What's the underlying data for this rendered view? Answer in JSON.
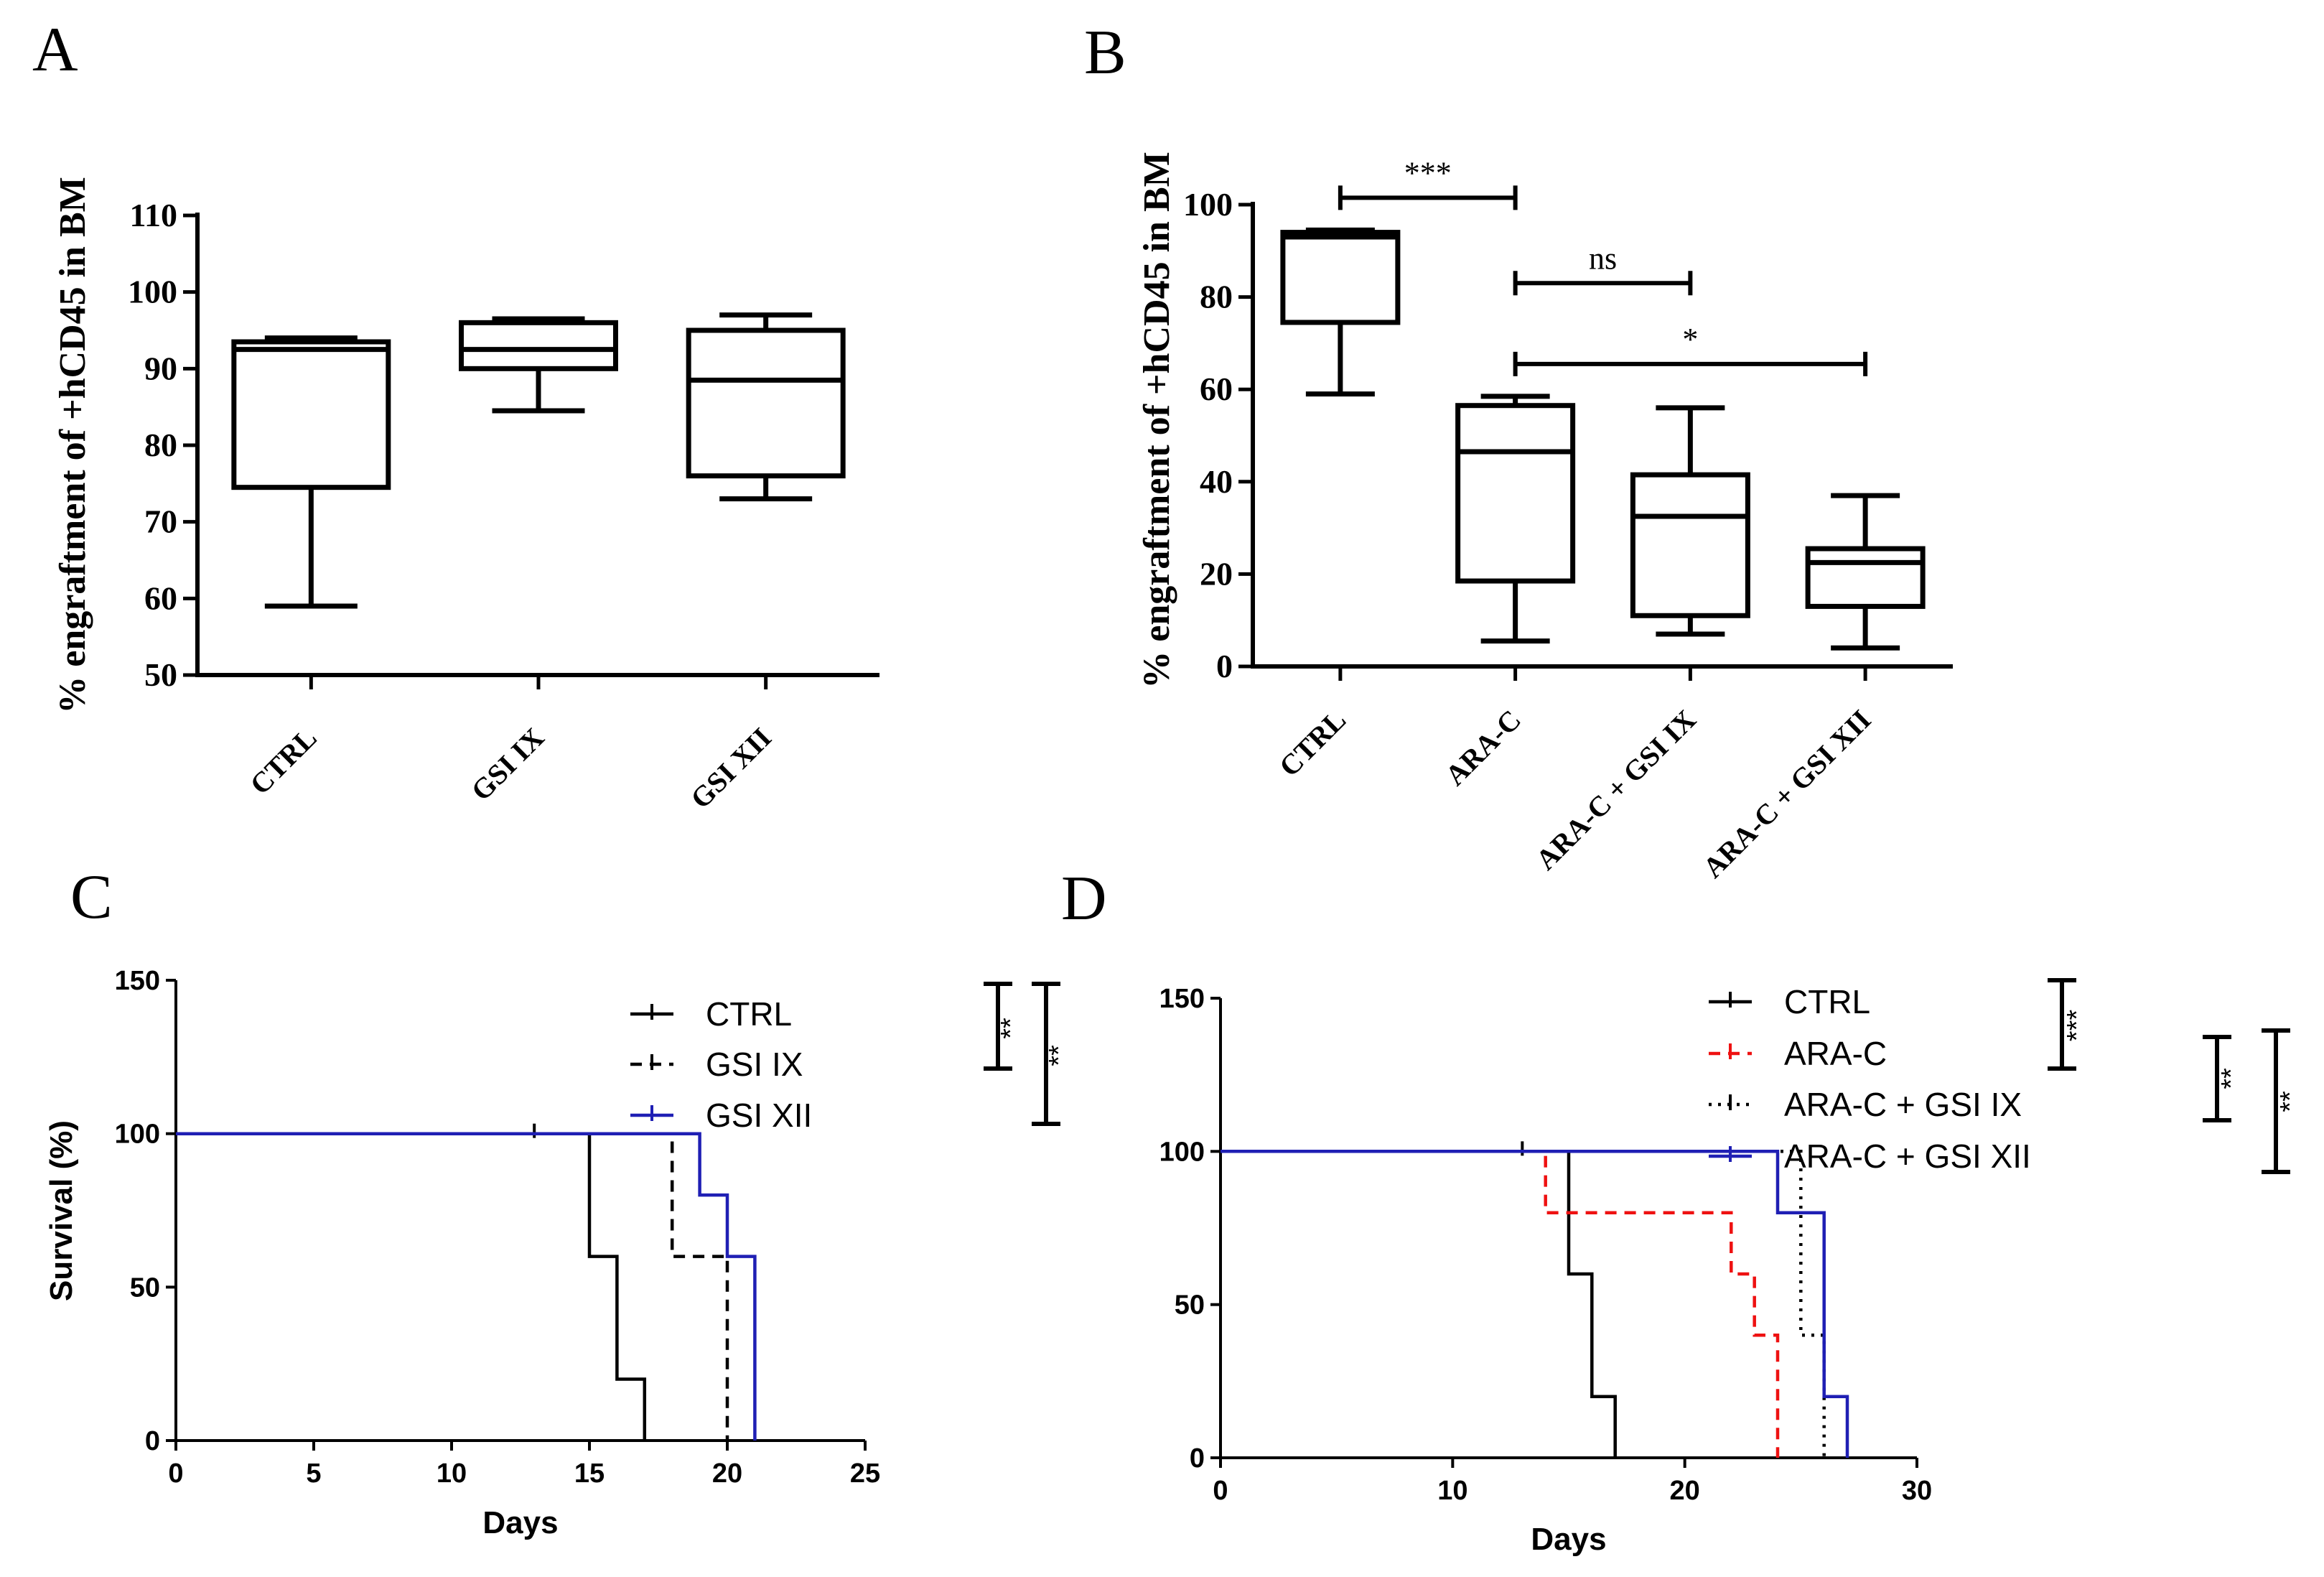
{
  "figure_labels": [
    "A",
    "B",
    "C",
    "D"
  ],
  "chart_data": [
    {
      "panel": "A",
      "type": "box",
      "ylabel": "% engraftment of +hCD45 in BM",
      "ylim": [
        50,
        110
      ],
      "yticks": [
        50,
        60,
        70,
        80,
        90,
        100,
        110
      ],
      "categories": [
        "CTRL",
        "GSI IX",
        "GSI XII"
      ],
      "boxes": [
        {
          "min": 59,
          "q1": 74.5,
          "median": 92.5,
          "q3": 93.5,
          "max": 94
        },
        {
          "min": 84.5,
          "q1": 90,
          "median": 92.5,
          "q3": 96,
          "max": 96.5
        },
        {
          "min": 73,
          "q1": 76,
          "median": 88.5,
          "q3": 95,
          "max": 97
        }
      ],
      "comparisons": []
    },
    {
      "panel": "B",
      "type": "box",
      "ylabel": "% engraftment of +hCD45 in BM",
      "ylim": [
        0,
        100
      ],
      "yticks": [
        0,
        20,
        40,
        60,
        80,
        100
      ],
      "categories": [
        "CTRL",
        "ARA-C",
        "ARA-C + GSI IX",
        "ARA-C + GSI XII"
      ],
      "boxes": [
        {
          "min": 59,
          "q1": 74.5,
          "median": 93,
          "q3": 94,
          "max": 94.5
        },
        {
          "min": 5.5,
          "q1": 18.5,
          "median": 46.5,
          "q3": 56.5,
          "max": 58.5
        },
        {
          "min": 7,
          "q1": 11,
          "median": 32.5,
          "q3": 41.5,
          "max": 56
        },
        {
          "min": 4,
          "q1": 13,
          "median": 22.5,
          "q3": 25.5,
          "max": 37
        }
      ],
      "comparisons": [
        {
          "from": 0,
          "to": 1,
          "label": "***",
          "y": 101.5
        },
        {
          "from": 1,
          "to": 2,
          "label": "ns",
          "y": 83
        },
        {
          "from": 1,
          "to": 3,
          "label": "*",
          "y": 65.5
        }
      ]
    },
    {
      "panel": "C",
      "type": "line",
      "subtype": "kaplan-meier",
      "xlabel": "Days",
      "ylabel": "Survival (%)",
      "xlim": [
        0,
        25
      ],
      "ylim": [
        0,
        150
      ],
      "xticks": [
        0,
        5,
        10,
        15,
        20,
        25
      ],
      "yticks": [
        0,
        50,
        100,
        150
      ],
      "series": [
        {
          "name": "CTRL",
          "color": "#000000",
          "dash": "solid",
          "steps": [
            [
              0,
              100
            ],
            [
              15,
              60
            ],
            [
              16,
              20
            ],
            [
              17,
              0
            ]
          ],
          "censor": [
            [
              13,
              100
            ]
          ]
        },
        {
          "name": "GSI IX",
          "color": "#000000",
          "dash": "dashed",
          "steps": [
            [
              0,
              100
            ],
            [
              18,
              60
            ],
            [
              20,
              0
            ]
          ],
          "censor": []
        },
        {
          "name": "GSI XII",
          "color": "#1f1fb4",
          "dash": "solid",
          "steps": [
            [
              0,
              100
            ],
            [
              19,
              80
            ],
            [
              20,
              60
            ],
            [
              21,
              0
            ]
          ],
          "censor": []
        }
      ],
      "significance": [
        {
          "label": "**",
          "between": [
            "CTRL",
            "GSI IX"
          ]
        },
        {
          "label": "**",
          "between": [
            "CTRL",
            "GSI XII"
          ]
        }
      ]
    },
    {
      "panel": "D",
      "type": "line",
      "subtype": "kaplan-meier",
      "xlabel": "Days",
      "ylabel": "",
      "xlim": [
        0,
        30
      ],
      "ylim": [
        0,
        150
      ],
      "xticks": [
        0,
        10,
        20,
        30
      ],
      "yticks": [
        0,
        50,
        100,
        150
      ],
      "series": [
        {
          "name": "CTRL",
          "color": "#000000",
          "dash": "solid",
          "steps": [
            [
              0,
              100
            ],
            [
              15,
              60
            ],
            [
              16,
              20
            ],
            [
              17,
              0
            ]
          ],
          "censor": [
            [
              13,
              100
            ]
          ]
        },
        {
          "name": "ARA-C",
          "color": "#ee1111",
          "dash": "dashed",
          "steps": [
            [
              0,
              100
            ],
            [
              14,
              80
            ],
            [
              22,
              60
            ],
            [
              23,
              40
            ],
            [
              24,
              0
            ]
          ],
          "censor": []
        },
        {
          "name": "ARA-C + GSI IX",
          "color": "#000000",
          "dash": "dotted",
          "steps": [
            [
              0,
              100
            ],
            [
              25,
              40
            ],
            [
              26,
              0
            ]
          ],
          "censor": []
        },
        {
          "name": "ARA-C + GSI XII",
          "color": "#1f1fb4",
          "dash": "solid",
          "steps": [
            [
              0,
              100
            ],
            [
              24,
              80
            ],
            [
              26,
              20
            ],
            [
              27,
              0
            ]
          ],
          "censor": []
        }
      ],
      "significance": [
        {
          "label": "***",
          "between": [
            "CTRL",
            "ARA-C"
          ]
        },
        {
          "label": "**",
          "between": [
            "ARA-C",
            "ARA-C + GSI IX"
          ]
        },
        {
          "label": "**",
          "between": [
            "ARA-C",
            "ARA-C + GSI XII"
          ]
        }
      ]
    }
  ]
}
